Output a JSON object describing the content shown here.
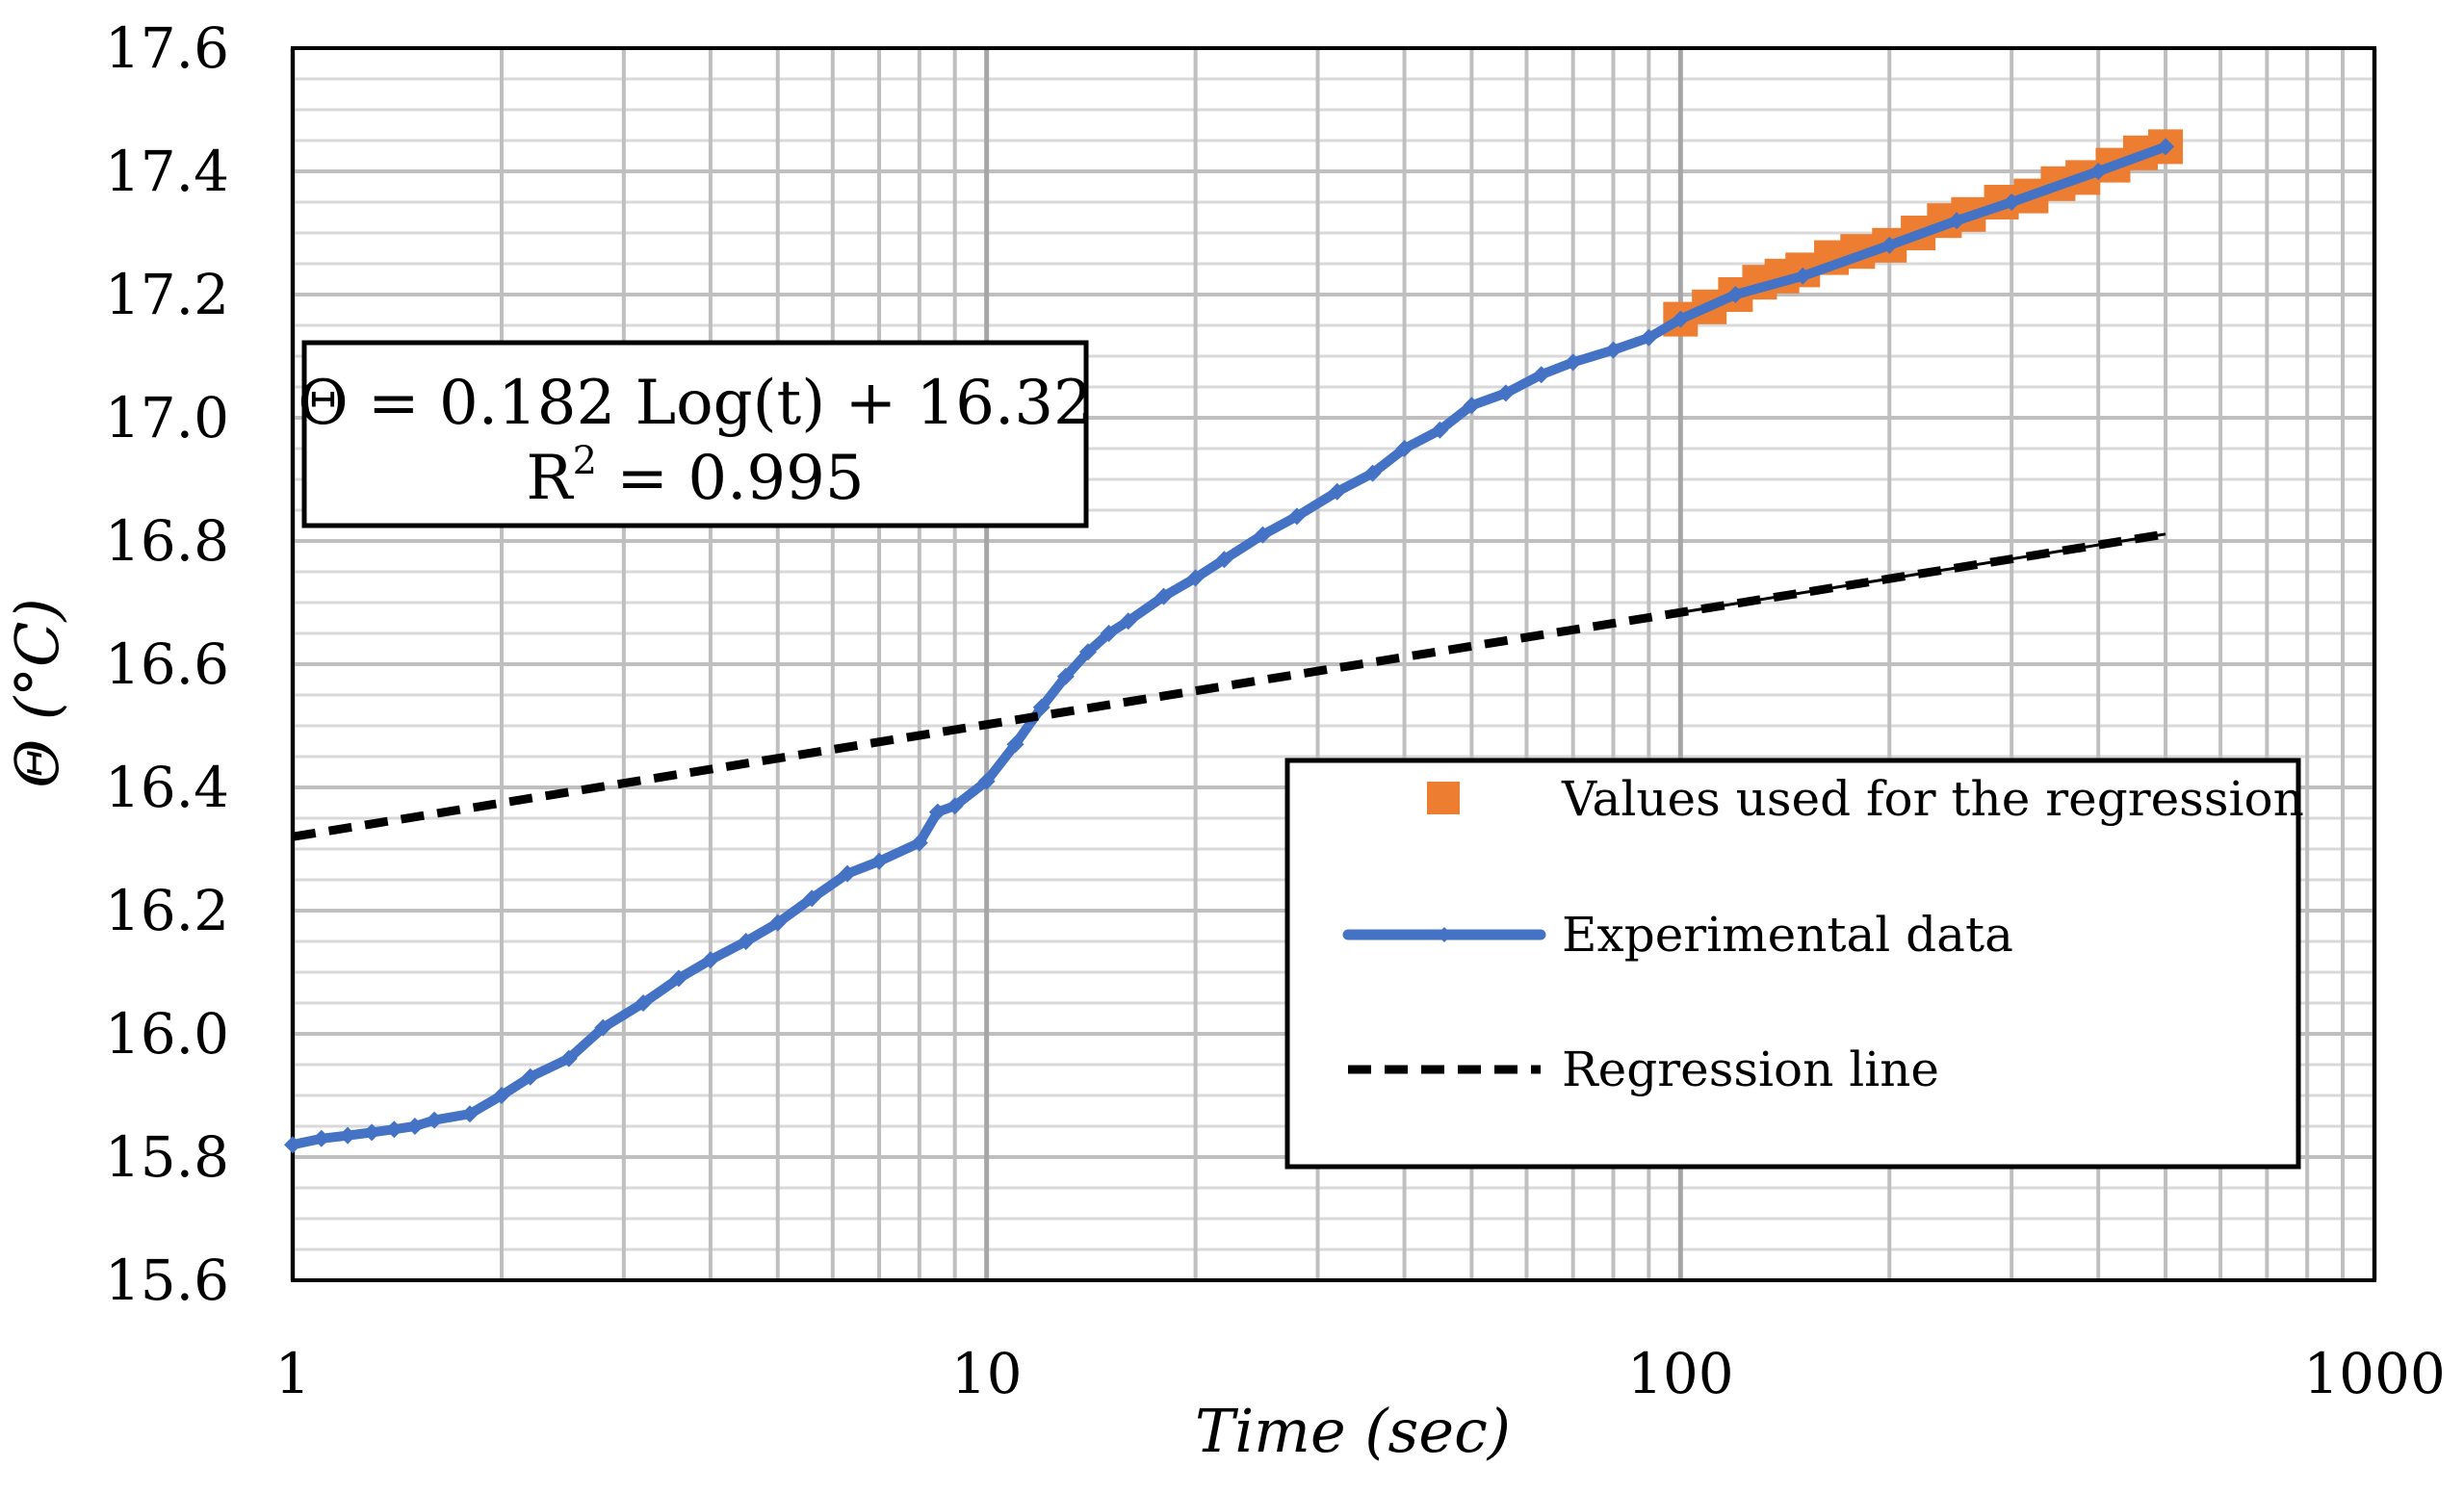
{
  "chart_data": {
    "type": "line",
    "x_scale": "log",
    "xlabel": "Time (sec)",
    "ylabel": "Θ (°C)",
    "xlim": [
      1,
      1000
    ],
    "ylim": [
      15.6,
      17.6
    ],
    "x_ticks": [
      1,
      10,
      100,
      1000
    ],
    "x_tick_labels": [
      "1",
      "10",
      "100",
      "1000"
    ],
    "y_ticks": [
      15.6,
      15.8,
      16.0,
      16.2,
      16.4,
      16.6,
      16.8,
      17.0,
      17.2,
      17.4,
      17.6
    ],
    "y_tick_labels": [
      "15.6",
      "15.8",
      "16.0",
      "16.2",
      "16.4",
      "16.6",
      "16.8",
      "17.0",
      "17.2",
      "17.4",
      "17.6"
    ],
    "grid": true,
    "legend_position": "center-right",
    "annotation": {
      "equation": "Θ = 0.182 Log(t) + 16.32",
      "r2_prefix": "R",
      "r2_sup": "2",
      "r2_value": " = 0.995"
    },
    "series": [
      {
        "name": "Values used for the regression",
        "kind": "markers",
        "color": "#ED7D31",
        "x": [
          100,
          110,
          120,
          130,
          140,
          150,
          165,
          180,
          200,
          220,
          240,
          260,
          290,
          320,
          350,
          380,
          420,
          460,
          500
        ],
        "y": [
          17.16,
          17.18,
          17.2,
          17.22,
          17.23,
          17.24,
          17.26,
          17.27,
          17.28,
          17.3,
          17.32,
          17.33,
          17.35,
          17.36,
          17.38,
          17.39,
          17.41,
          17.43,
          17.44
        ]
      },
      {
        "name": "Experimental data",
        "kind": "line",
        "color": "#4472C4",
        "x": [
          1,
          1.1,
          1.2,
          1.3,
          1.4,
          1.5,
          1.6,
          1.8,
          2.0,
          2.2,
          2.5,
          2.8,
          3.2,
          3.6,
          4.0,
          4.5,
          5.0,
          5.6,
          6.3,
          7.0,
          8.0,
          8.5,
          9.0,
          10,
          11,
          12,
          13,
          14,
          15,
          16,
          18,
          20,
          22,
          25,
          28,
          32,
          36,
          40,
          45,
          50,
          56,
          63,
          70,
          80,
          90,
          100,
          120,
          150,
          200,
          250,
          300,
          400,
          500
        ],
        "y": [
          15.82,
          15.83,
          15.835,
          15.84,
          15.845,
          15.85,
          15.86,
          15.87,
          15.9,
          15.93,
          15.96,
          16.01,
          16.05,
          16.09,
          16.12,
          16.15,
          16.18,
          16.22,
          16.26,
          16.28,
          16.31,
          16.36,
          16.37,
          16.41,
          16.47,
          16.53,
          16.58,
          16.62,
          16.65,
          16.67,
          16.71,
          16.74,
          16.77,
          16.81,
          16.84,
          16.88,
          16.91,
          16.95,
          16.98,
          17.02,
          17.04,
          17.07,
          17.09,
          17.11,
          17.13,
          17.16,
          17.2,
          17.23,
          17.28,
          17.32,
          17.35,
          17.4,
          17.44
        ]
      },
      {
        "name": "Regression line",
        "kind": "dashed",
        "color": "#000000",
        "slope": 0.182,
        "intercept": 16.32
      }
    ]
  }
}
